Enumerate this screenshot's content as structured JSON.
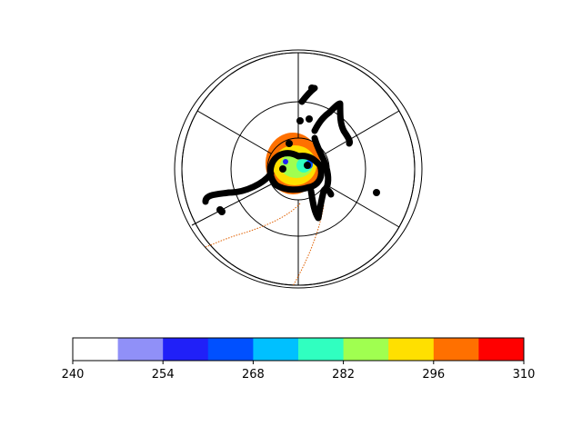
{
  "chart_data": {
    "type": "heatmap",
    "title": "",
    "projection": "polar stereographic",
    "grid": true,
    "colorbar": {
      "orientation": "horizontal",
      "placement": "bottom",
      "boundaries": [
        240,
        247,
        254,
        261,
        268,
        275,
        282,
        289,
        296,
        303,
        310
      ],
      "tick_labels": [
        "240",
        "254",
        "268",
        "282",
        "296",
        "310"
      ],
      "colors": [
        "#ffffff",
        "#9090f8",
        "#2020f8",
        "#0050ff",
        "#00c0ff",
        "#30ffc0",
        "#a0ff50",
        "#ffe000",
        "#ff7000",
        "#ff0000"
      ]
    },
    "field_levels_visible": [
      254,
      268,
      282,
      289,
      296,
      303
    ],
    "track": {
      "color": "#000000",
      "marker": "filled-circle"
    },
    "contour_line_color": "#e06000"
  }
}
